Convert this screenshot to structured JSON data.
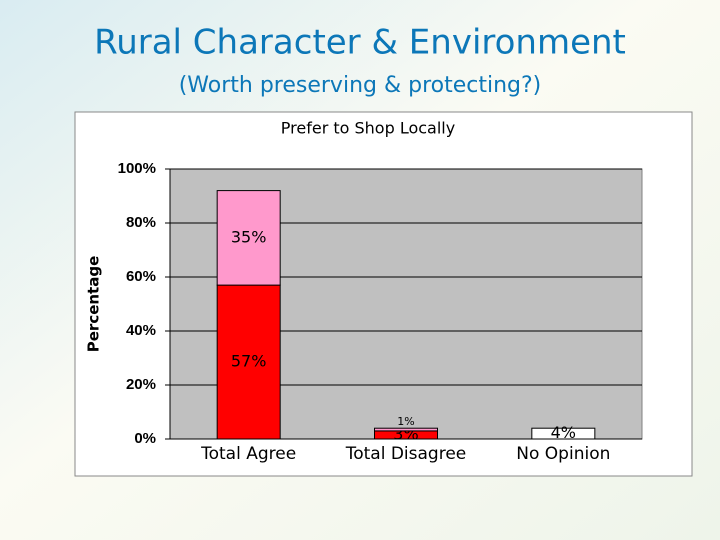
{
  "slide": {
    "title": "Rural Character & Environment",
    "subtitle": "(Worth preserving & protecting?)"
  },
  "chart_data": {
    "type": "stacked_bar",
    "title": "Prefer to Shop Locally",
    "y_label": "Percentage",
    "categories": [
      "Total Agree",
      "Total Disagree",
      "No Opinion"
    ],
    "series": [
      {
        "color": "#ff0000",
        "values": [
          57,
          3,
          null
        ],
        "value_labels": [
          "57%",
          "3%",
          null
        ]
      },
      {
        "color": "#ff99cc",
        "values": [
          35,
          1,
          null
        ],
        "value_labels": [
          "35%",
          "1%",
          null
        ]
      },
      {
        "color": "#ffffff",
        "values": [
          null,
          null,
          4
        ],
        "value_labels": [
          null,
          null,
          "4%"
        ]
      }
    ],
    "ylim": [
      0,
      100
    ],
    "yticks": [
      {
        "value": 0,
        "label": "0%"
      },
      {
        "value": 20,
        "label": "20%"
      },
      {
        "value": 40,
        "label": "40%"
      },
      {
        "value": 60,
        "label": "60%"
      },
      {
        "value": 80,
        "label": "80%"
      },
      {
        "value": 100,
        "label": "100%"
      }
    ],
    "grid": true
  }
}
